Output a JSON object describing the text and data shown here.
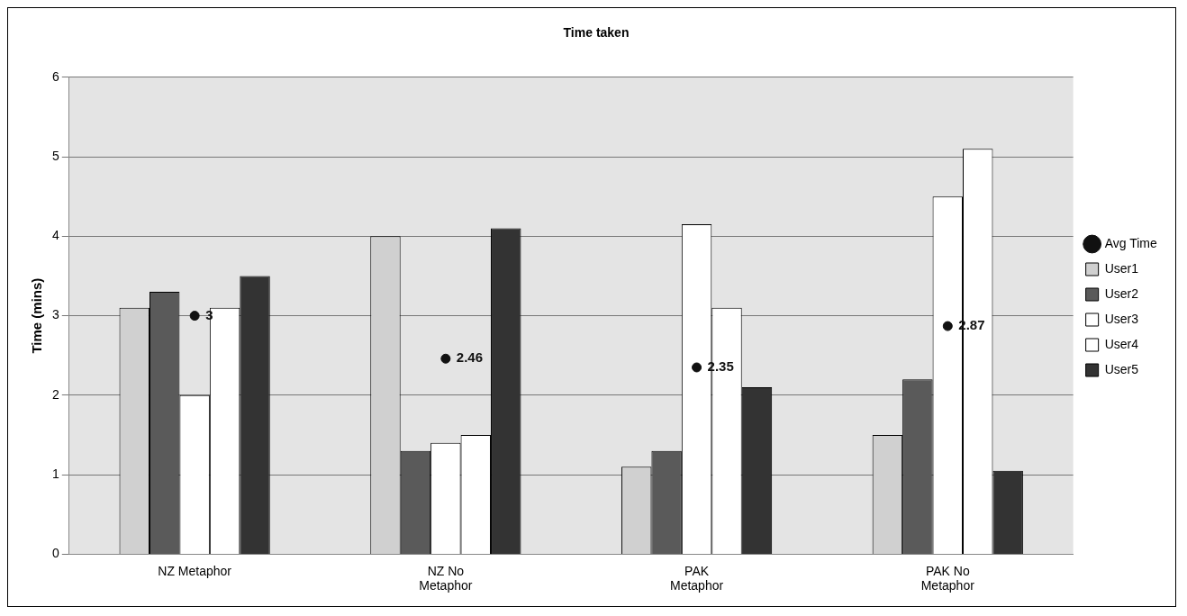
{
  "chart_data": {
    "type": "bar",
    "title": "Time taken",
    "ylabel": "Time (mins)",
    "categories": [
      "NZ Metaphor",
      "NZ No Metaphor",
      "PAK Metaphor",
      "PAK No Metaphor"
    ],
    "series": [
      {
        "name": "User1",
        "color": "#d0d0d0",
        "values": [
          3.1,
          4.0,
          1.1,
          1.5
        ]
      },
      {
        "name": "User2",
        "color": "#5a5a5a",
        "values": [
          3.3,
          1.3,
          1.3,
          2.2
        ]
      },
      {
        "name": "User3",
        "color": "#ffffff",
        "values": [
          2.0,
          1.4,
          4.15,
          4.5
        ]
      },
      {
        "name": "User4",
        "color": "#ffffff",
        "values": [
          3.1,
          1.5,
          3.1,
          5.1
        ]
      },
      {
        "name": "User5",
        "color": "#333333",
        "values": [
          3.5,
          4.1,
          2.1,
          1.05
        ]
      },
      {
        "name": "Avg Time",
        "type": "scatter",
        "marker": "circle",
        "color": "#111111",
        "values": [
          3,
          2.46,
          2.35,
          2.87
        ],
        "value_labels": [
          "3",
          "2.46",
          "2.35",
          "2.87"
        ]
      }
    ],
    "ylim": [
      0,
      6
    ],
    "yticks": [
      0,
      1,
      2,
      3,
      4,
      5,
      6
    ],
    "grid": "y",
    "legend": "right"
  }
}
